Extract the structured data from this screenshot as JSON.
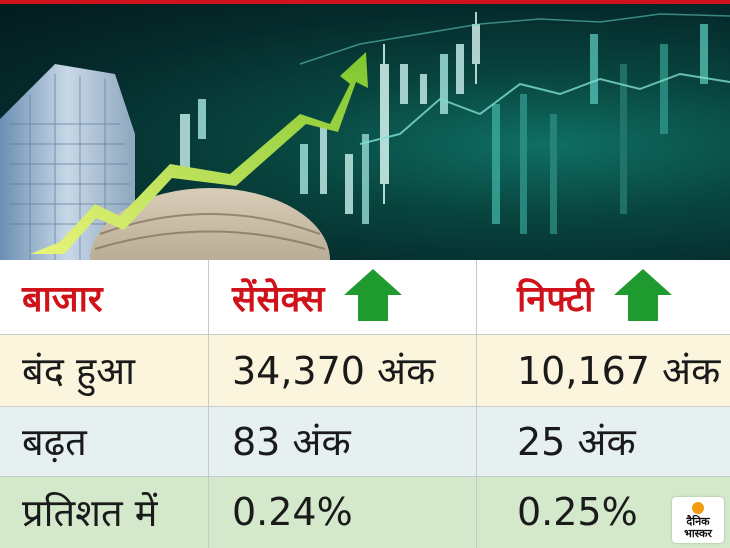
{
  "table": {
    "headers": [
      "बाजार",
      "सेंसेक्स",
      "निफ्टी"
    ],
    "rows": [
      [
        "बंद हुआ",
        "34,370 अंक",
        "10,167 अंक"
      ],
      [
        "बढ़त",
        "83 अंक",
        "25 अंक"
      ],
      [
        "प्रतिशत में",
        "0.24%",
        "0.25%"
      ]
    ],
    "header_arrow_color": "#1e9a2e",
    "header_text_color": "#d0121b"
  },
  "hero": {
    "trend_arrow_icon": "up-trend-arrow-icon",
    "trend_arrow_color": "#9dd33a",
    "background_color": "#063a36"
  },
  "logo": {
    "line1": "दैनिक",
    "line2": "भास्कर",
    "dot_color": "#f39c12"
  }
}
